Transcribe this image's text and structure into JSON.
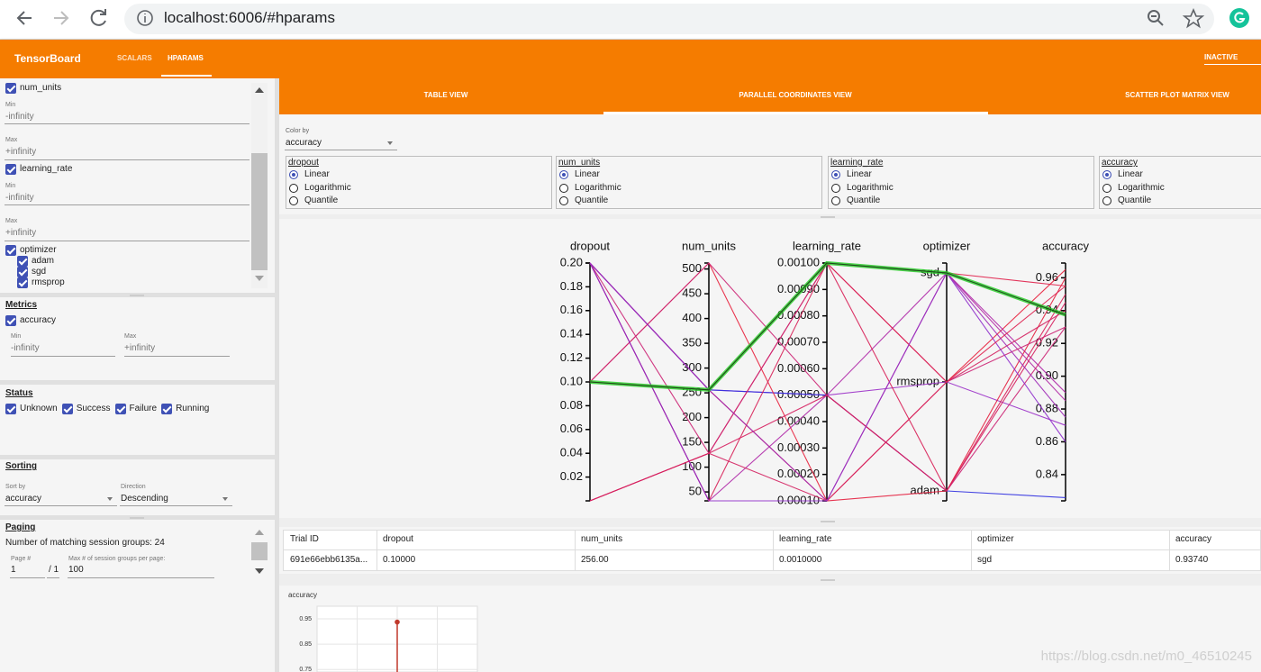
{
  "browser": {
    "url": "localhost:6006/#hparams"
  },
  "header": {
    "brand": "TensorBoard",
    "tabs": [
      "SCALARS",
      "HPARAMS"
    ],
    "status": "INACTIVE"
  },
  "sidebar": {
    "hparams": [
      {
        "name": "num_units",
        "min_label": "Min",
        "min": "-infinity",
        "max_label": "Max",
        "max": "+infinity"
      },
      {
        "name": "learning_rate",
        "min_label": "Min",
        "min": "-infinity",
        "max_label": "Max",
        "max": "+infinity"
      },
      {
        "name": "optimizer",
        "options": [
          "adam",
          "sgd",
          "rmsprop"
        ]
      }
    ],
    "metrics": {
      "title": "Metrics",
      "name": "accuracy",
      "min_label": "Min",
      "min": "-infinity",
      "max_label": "Max",
      "max": "+infinity"
    },
    "status": {
      "title": "Status",
      "options": [
        "Unknown",
        "Success",
        "Failure",
        "Running"
      ]
    },
    "sorting": {
      "title": "Sorting",
      "sort_by_label": "Sort by",
      "sort_by": "accuracy",
      "direction_label": "Direction",
      "direction": "Descending"
    },
    "paging": {
      "title": "Paging",
      "summary": "Number of matching session groups: 24",
      "page_label": "Page #",
      "page": "1",
      "page_total": "/ 1",
      "per_page_label": "Max # of session groups per page:",
      "per_page": "100"
    }
  },
  "views": [
    "TABLE VIEW",
    "PARALLEL COORDINATES VIEW",
    "SCATTER PLOT MATRIX VIEW"
  ],
  "color_by": {
    "label": "Color by",
    "value": "accuracy"
  },
  "scales": {
    "columns": [
      "dropout",
      "num_units",
      "learning_rate",
      "accuracy"
    ],
    "options": [
      "Linear",
      "Logarithmic",
      "Quantile"
    ]
  },
  "chart_data": [
    {
      "type": "parallel",
      "axes": [
        {
          "name": "dropout",
          "ylim": [
            0,
            0.2
          ],
          "yticks": [
            0.02,
            0.04,
            0.06,
            0.08,
            {
              "value": 0.1,
              "label": "0.10"
            },
            0.12,
            0.14,
            0.16,
            0.18,
            {
              "value": 0.2,
              "label": "0.20"
            }
          ]
        },
        {
          "name": "num_units",
          "ylim": [
            32,
            512
          ],
          "yticks": [
            50,
            100,
            150,
            200,
            250,
            300,
            350,
            400,
            450,
            500
          ]
        },
        {
          "name": "learning_rate",
          "ylim": [
            0.0001,
            0.001
          ],
          "yticks": [
            {
              "value": 0.0001,
              "label": "0.00010"
            },
            {
              "value": 0.0002,
              "label": "0.00020"
            },
            {
              "value": 0.0003,
              "label": "0.00030"
            },
            {
              "value": 0.0004,
              "label": "0.00040"
            },
            {
              "value": 0.0005,
              "label": "0.00050"
            },
            {
              "value": 0.0006,
              "label": "0.00060"
            },
            {
              "value": 0.0007,
              "label": "0.00070"
            },
            {
              "value": 0.0008,
              "label": "0.00080"
            },
            {
              "value": 0.0009,
              "label": "0.00090"
            },
            {
              "value": 0.001,
              "label": "0.00100"
            }
          ]
        },
        {
          "name": "optimizer",
          "categories": [
            "sgd",
            "rmsprop",
            "adam"
          ]
        },
        {
          "name": "accuracy",
          "ylim": [
            0.824,
            0.969
          ],
          "yticks": [
            0.84,
            0.86,
            0.88,
            {
              "value": 0.9,
              "label": "0.90"
            },
            0.92,
            0.94,
            0.96
          ]
        }
      ],
      "sessions": [
        {
          "dropout": 0.2,
          "num_units": 256,
          "learning_rate": 0.0005,
          "optimizer": "rmsprop",
          "accuracy": 0.87,
          "color": "#9b30c8"
        },
        {
          "dropout": 0.2,
          "num_units": 256,
          "learning_rate": 0.0005,
          "optimizer": "adam",
          "accuracy": 0.826,
          "color": "#3030e0"
        },
        {
          "dropout": 0.0,
          "num_units": 128,
          "learning_rate": 0.001,
          "optimizer": "sgd",
          "accuracy": 0.955,
          "color": "#e0204a"
        },
        {
          "dropout": 0.1,
          "num_units": 512,
          "learning_rate": 0.0001,
          "optimizer": "rmsprop",
          "accuracy": 0.965,
          "color": "#e8203c"
        },
        {
          "dropout": 0.2,
          "num_units": 32,
          "learning_rate": 0.0005,
          "optimizer": "sgd",
          "accuracy": 0.89,
          "color": "#b02aa8"
        },
        {
          "dropout": 0.2,
          "num_units": 32,
          "learning_rate": 0.001,
          "optimizer": "adam",
          "accuracy": 0.95,
          "color": "#d82058"
        },
        {
          "dropout": 0.1,
          "num_units": 256,
          "learning_rate": 0.0001,
          "optimizer": "adam",
          "accuracy": 0.96,
          "color": "#e4203f"
        },
        {
          "dropout": 0.0,
          "num_units": 128,
          "learning_rate": 0.0001,
          "optimizer": "rmsprop",
          "accuracy": 0.94,
          "color": "#d42262"
        },
        {
          "dropout": 0.2,
          "num_units": 256,
          "learning_rate": 0.001,
          "optimizer": "sgd",
          "accuracy": 0.885,
          "color": "#b22ca6"
        },
        {
          "dropout": 0.1,
          "num_units": 512,
          "learning_rate": 0.0005,
          "optimizer": "adam",
          "accuracy": 0.93,
          "color": "#cc2474"
        },
        {
          "dropout": 0.2,
          "num_units": 128,
          "learning_rate": 0.001,
          "optimizer": "rmsprop",
          "accuracy": 0.93,
          "color": "#cc2474"
        },
        {
          "dropout": 0.2,
          "num_units": 32,
          "learning_rate": 0.0001,
          "optimizer": "sgd",
          "accuracy": 0.86,
          "color": "#9030cc"
        },
        {
          "dropout": 0.1,
          "num_units": 256,
          "learning_rate": 0.001,
          "optimizer": "rmsprop",
          "accuracy": 0.955,
          "color": "#de2250"
        },
        {
          "dropout": 0.0,
          "num_units": 128,
          "learning_rate": 0.0005,
          "optimizer": "adam",
          "accuracy": 0.945,
          "color": "#d62060"
        },
        {
          "dropout": 0.2,
          "num_units": 256,
          "learning_rate": 0.0001,
          "optimizer": "sgd",
          "accuracy": 0.875,
          "color": "#a02eb8"
        },
        {
          "dropout": 0.1,
          "num_units": 256,
          "learning_rate": 0.001,
          "optimizer": "sgd",
          "accuracy": 0.9374,
          "color": "#22cc22"
        }
      ]
    },
    {
      "type": "scatter",
      "title": "accuracy",
      "ylim": [
        0.74,
        1.0
      ],
      "yticks": [
        0.75,
        0.85,
        0.95
      ],
      "values": [
        0.9374
      ],
      "color": "#c0392b",
      "grid": true
    }
  ],
  "table": {
    "headers": [
      "Trial ID",
      "dropout",
      "num_units",
      "learning_rate",
      "optimizer",
      "accuracy"
    ],
    "rows": [
      [
        "691e66ebb6135a...",
        "0.10000",
        "256.00",
        "0.0010000",
        "sgd",
        "0.93740"
      ]
    ]
  },
  "watermark": "https://blog.csdn.net/m0_46510245"
}
